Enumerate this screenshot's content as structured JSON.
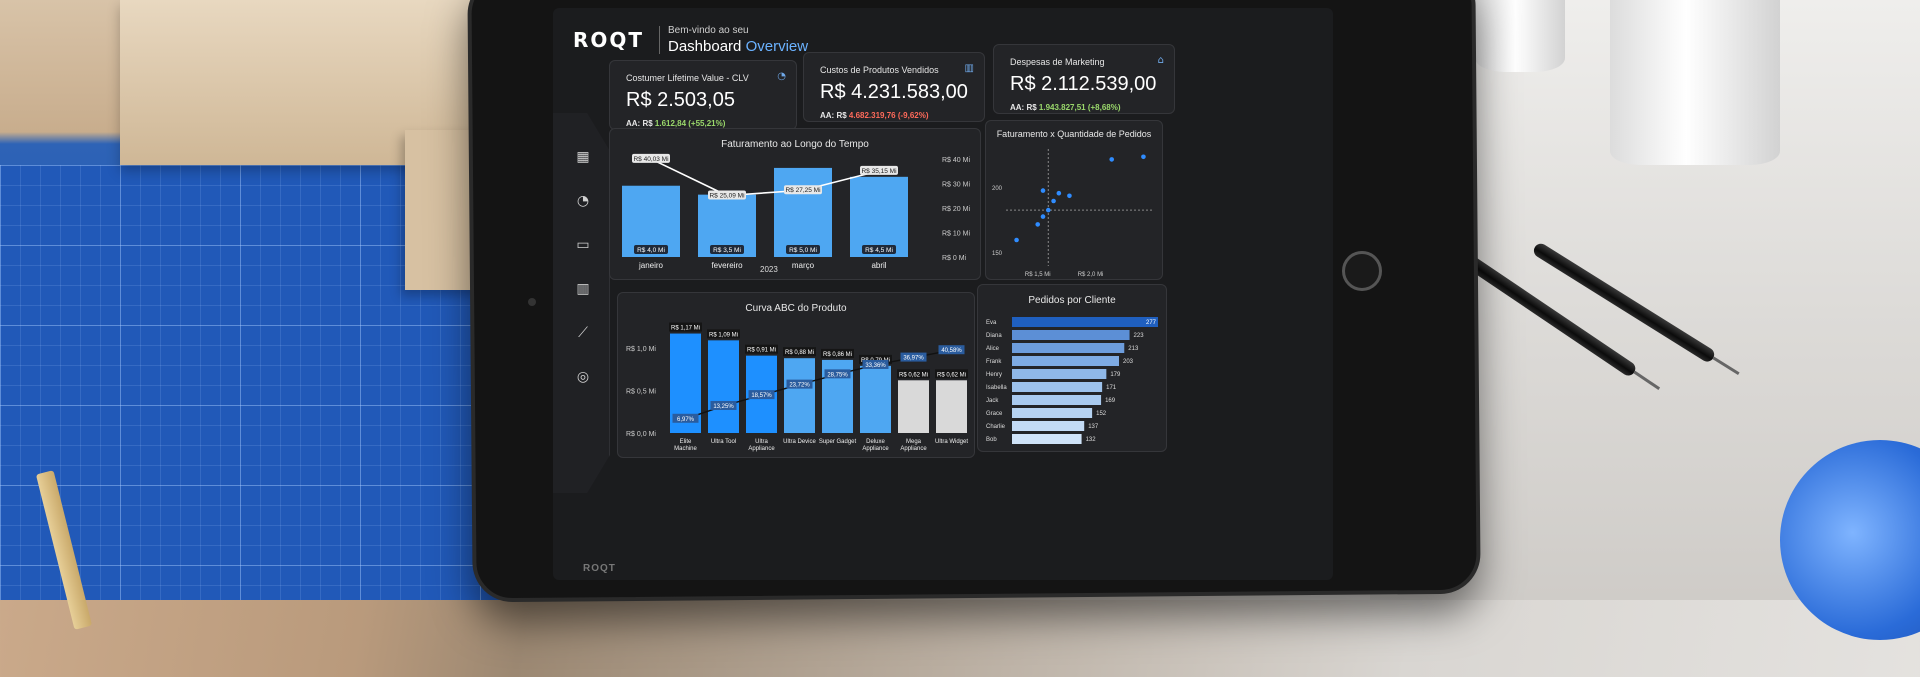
{
  "header": {
    "logo": "ROQT",
    "welcome": "Bem-vindo ao seu",
    "title_main": "Dashboard",
    "title_accent": "Overview"
  },
  "sidebar": {
    "items": [
      {
        "icon": "grid-icon"
      },
      {
        "icon": "pie-chart-icon"
      },
      {
        "icon": "monitor-chart-icon"
      },
      {
        "icon": "bar-chart-icon"
      },
      {
        "icon": "line-chart-icon"
      },
      {
        "icon": "target-icon"
      }
    ],
    "footer_logo": "ROQT"
  },
  "kpis": [
    {
      "label": "Costumer Lifetime Value - CLV",
      "value": "R$ 2.503,05",
      "aa_label": "AA: R$",
      "aa_value": "1.612,84 (+55,21%)",
      "trend": "up",
      "icon": "pie-chart-icon"
    },
    {
      "label": "Custos de Produtos Vendidos",
      "value": "R$ 4.231.583,00",
      "aa_label": "AA: R$",
      "aa_value": "4.682.319,76 (-9,62%)",
      "trend": "down",
      "icon": "bar-chart-icon"
    },
    {
      "label": "Despesas de Marketing",
      "value": "R$ 2.112.539,00",
      "aa_label": "AA: R$",
      "aa_value": "1.943.827,51 (+8,68%)",
      "trend": "up",
      "icon": "bag-icon"
    }
  ],
  "colors": {
    "accent": "#6bb2ff",
    "bar_blue": "#4ea7f2",
    "bar_bright": "#1e90ff",
    "positive": "#9ad86b",
    "negative": "#ff6a5a"
  },
  "chart_data": [
    {
      "type": "bar",
      "title": "Faturamento ao Longo do Tempo",
      "categories": [
        "janeiro",
        "fevereiro",
        "março",
        "abril"
      ],
      "xlabel": "2023",
      "series": [
        {
          "values": [
            4.0,
            3.5,
            5.0,
            4.5
          ],
          "labels": [
            "R$ 4,0 Mi",
            "R$ 3,5 Mi",
            "R$ 5,0 Mi",
            "R$ 4,5 Mi"
          ]
        },
        {
          "type": "line",
          "values": [
            40.03,
            25.09,
            27.25,
            35.15
          ],
          "labels": [
            "R$ 40,03 Mi",
            "R$ 25,09 Mi",
            "R$ 27,25 Mi",
            "R$ 35,15 Mi"
          ]
        }
      ],
      "y2_ticks": [
        "R$ 40 Mi",
        "R$ 30 Mi",
        "R$ 20 Mi",
        "R$ 10 Mi",
        "R$ 0 Mi"
      ],
      "y2lim": [
        0,
        40
      ]
    },
    {
      "type": "scatter",
      "title": "Faturamento x Quantidade de Pedidos",
      "points": [
        [
          1.3,
          160
        ],
        [
          1.5,
          172
        ],
        [
          1.55,
          178
        ],
        [
          1.6,
          183
        ],
        [
          1.65,
          190
        ],
        [
          1.7,
          196
        ],
        [
          1.8,
          194
        ],
        [
          1.55,
          198
        ],
        [
          2.2,
          222
        ],
        [
          2.5,
          224
        ]
      ],
      "x_ticks": [
        "R$ 1,5 Mi",
        "R$ 2,0 Mi"
      ],
      "y_ticks": [
        "200",
        "150"
      ]
    },
    {
      "type": "bar",
      "title": "Curva ABC do Produto",
      "categories": [
        "Elite Machine",
        "Ultra Tool",
        "Ultra Appliance",
        "Ultra Device",
        "Super Gadget",
        "Deluxe Appliance",
        "Mega Appliance",
        "Ultra Widget"
      ],
      "values": [
        1.17,
        1.09,
        0.91,
        0.88,
        0.86,
        0.79,
        0.62,
        0.62
      ],
      "value_labels": [
        "R$ 1,17 Mi",
        "R$ 1,09 Mi",
        "R$ 0,91 Mi",
        "R$ 0,88 Mi",
        "R$ 0,86 Mi",
        "R$ 0,79 Mi",
        "R$ 0,62 Mi",
        "R$ 0,62 Mi"
      ],
      "cumulative_labels": [
        "6,97%",
        "13,25%",
        "18,57%",
        "23,72%",
        "28,75%",
        "33,36%",
        "36,97%",
        "40,58%"
      ],
      "cumulative": [
        6.97,
        13.25,
        18.57,
        23.72,
        28.75,
        33.36,
        36.97,
        40.58
      ],
      "y_ticks": [
        "R$ 1,0 Mi",
        "R$ 0,5 Mi",
        "R$ 0,0 Mi"
      ],
      "ylim": [
        0,
        1.2
      ]
    },
    {
      "type": "bar",
      "orientation": "horizontal",
      "title": "Pedidos por Cliente",
      "categories": [
        "Eva",
        "Diana",
        "Alice",
        "Frank",
        "Henry",
        "Isabella",
        "Jack",
        "Grace",
        "Charlie",
        "Bob"
      ],
      "values": [
        277,
        223,
        213,
        203,
        179,
        171,
        169,
        152,
        137,
        132
      ]
    }
  ]
}
